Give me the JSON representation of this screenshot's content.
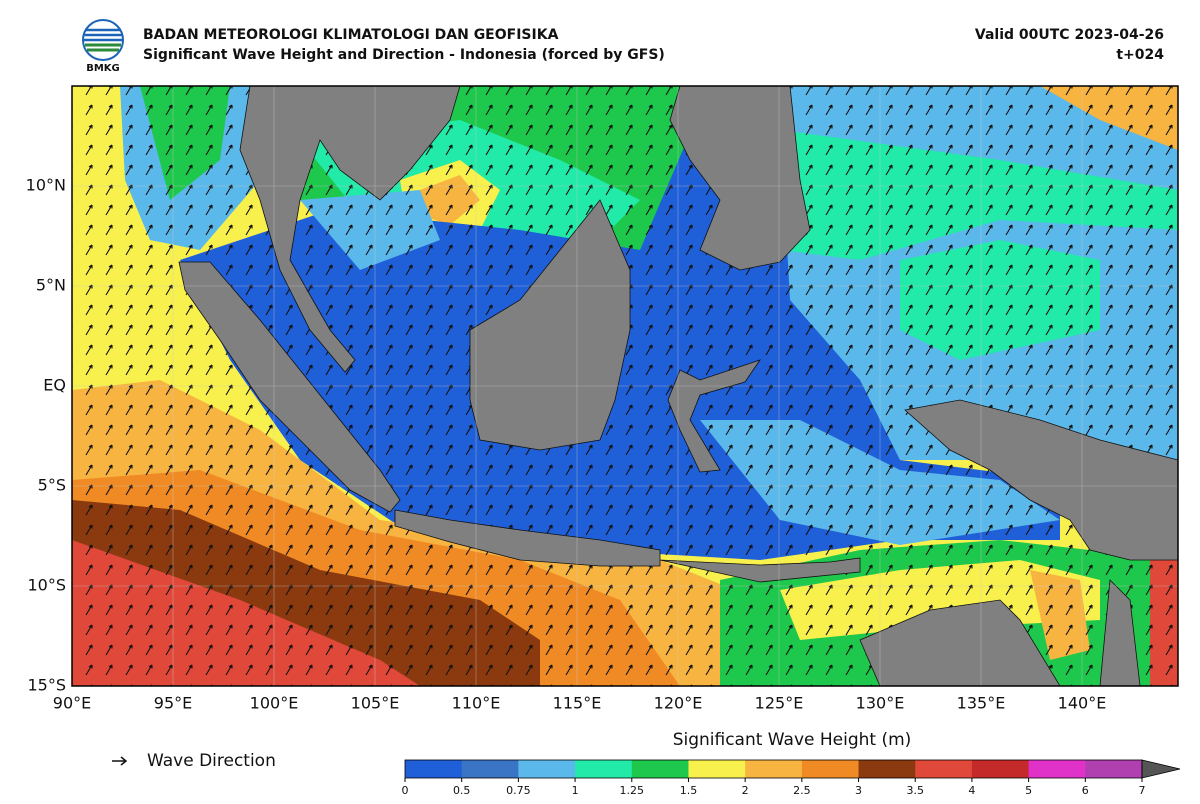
{
  "header": {
    "logo_text": "BMKG",
    "agency": "BADAN METEOROLOGI KLIMATOLOGI DAN GEOFISIKA",
    "title": "Significant Wave Height and Direction - Indonesia (forced by GFS)",
    "valid": "Valid 00UTC 2023-04-26",
    "step": "t+024"
  },
  "map": {
    "lat_ticks": [
      {
        "value": 10,
        "label": "10°N"
      },
      {
        "value": 5,
        "label": "5°N"
      },
      {
        "value": 0,
        "label": "EQ"
      },
      {
        "value": -5,
        "label": "5°S"
      },
      {
        "value": -10,
        "label": "10°S"
      },
      {
        "value": -15,
        "label": "15°S"
      }
    ],
    "lon_ticks": [
      {
        "value": 90,
        "label": "90°E"
      },
      {
        "value": 95,
        "label": "95°E"
      },
      {
        "value": 100,
        "label": "100°E"
      },
      {
        "value": 105,
        "label": "105°E"
      },
      {
        "value": 110,
        "label": "110°E"
      },
      {
        "value": 115,
        "label": "115°E"
      },
      {
        "value": 120,
        "label": "120°E"
      },
      {
        "value": 125,
        "label": "125°E"
      },
      {
        "value": 130,
        "label": "130°E"
      },
      {
        "value": 135,
        "label": "135°E"
      },
      {
        "value": 140,
        "label": "140°E"
      }
    ],
    "grid": true
  },
  "legend": {
    "arrow_label": "Wave Direction"
  },
  "colorbar": {
    "title": "Significant Wave Height (m)",
    "levels": [
      0,
      0.5,
      0.75,
      1,
      1.25,
      1.5,
      2,
      2.5,
      3,
      3.5,
      4,
      5,
      6,
      7
    ],
    "colors": [
      "#1f5fd8",
      "#3a74c4",
      "#5ab8ea",
      "#22eaa8",
      "#1ec84c",
      "#f8f04c",
      "#f8b440",
      "#f08a24",
      "#8a3a0e",
      "#e0483a",
      "#c42a2a",
      "#e032c8",
      "#b040b0"
    ],
    "extend_color": "#555555"
  }
}
